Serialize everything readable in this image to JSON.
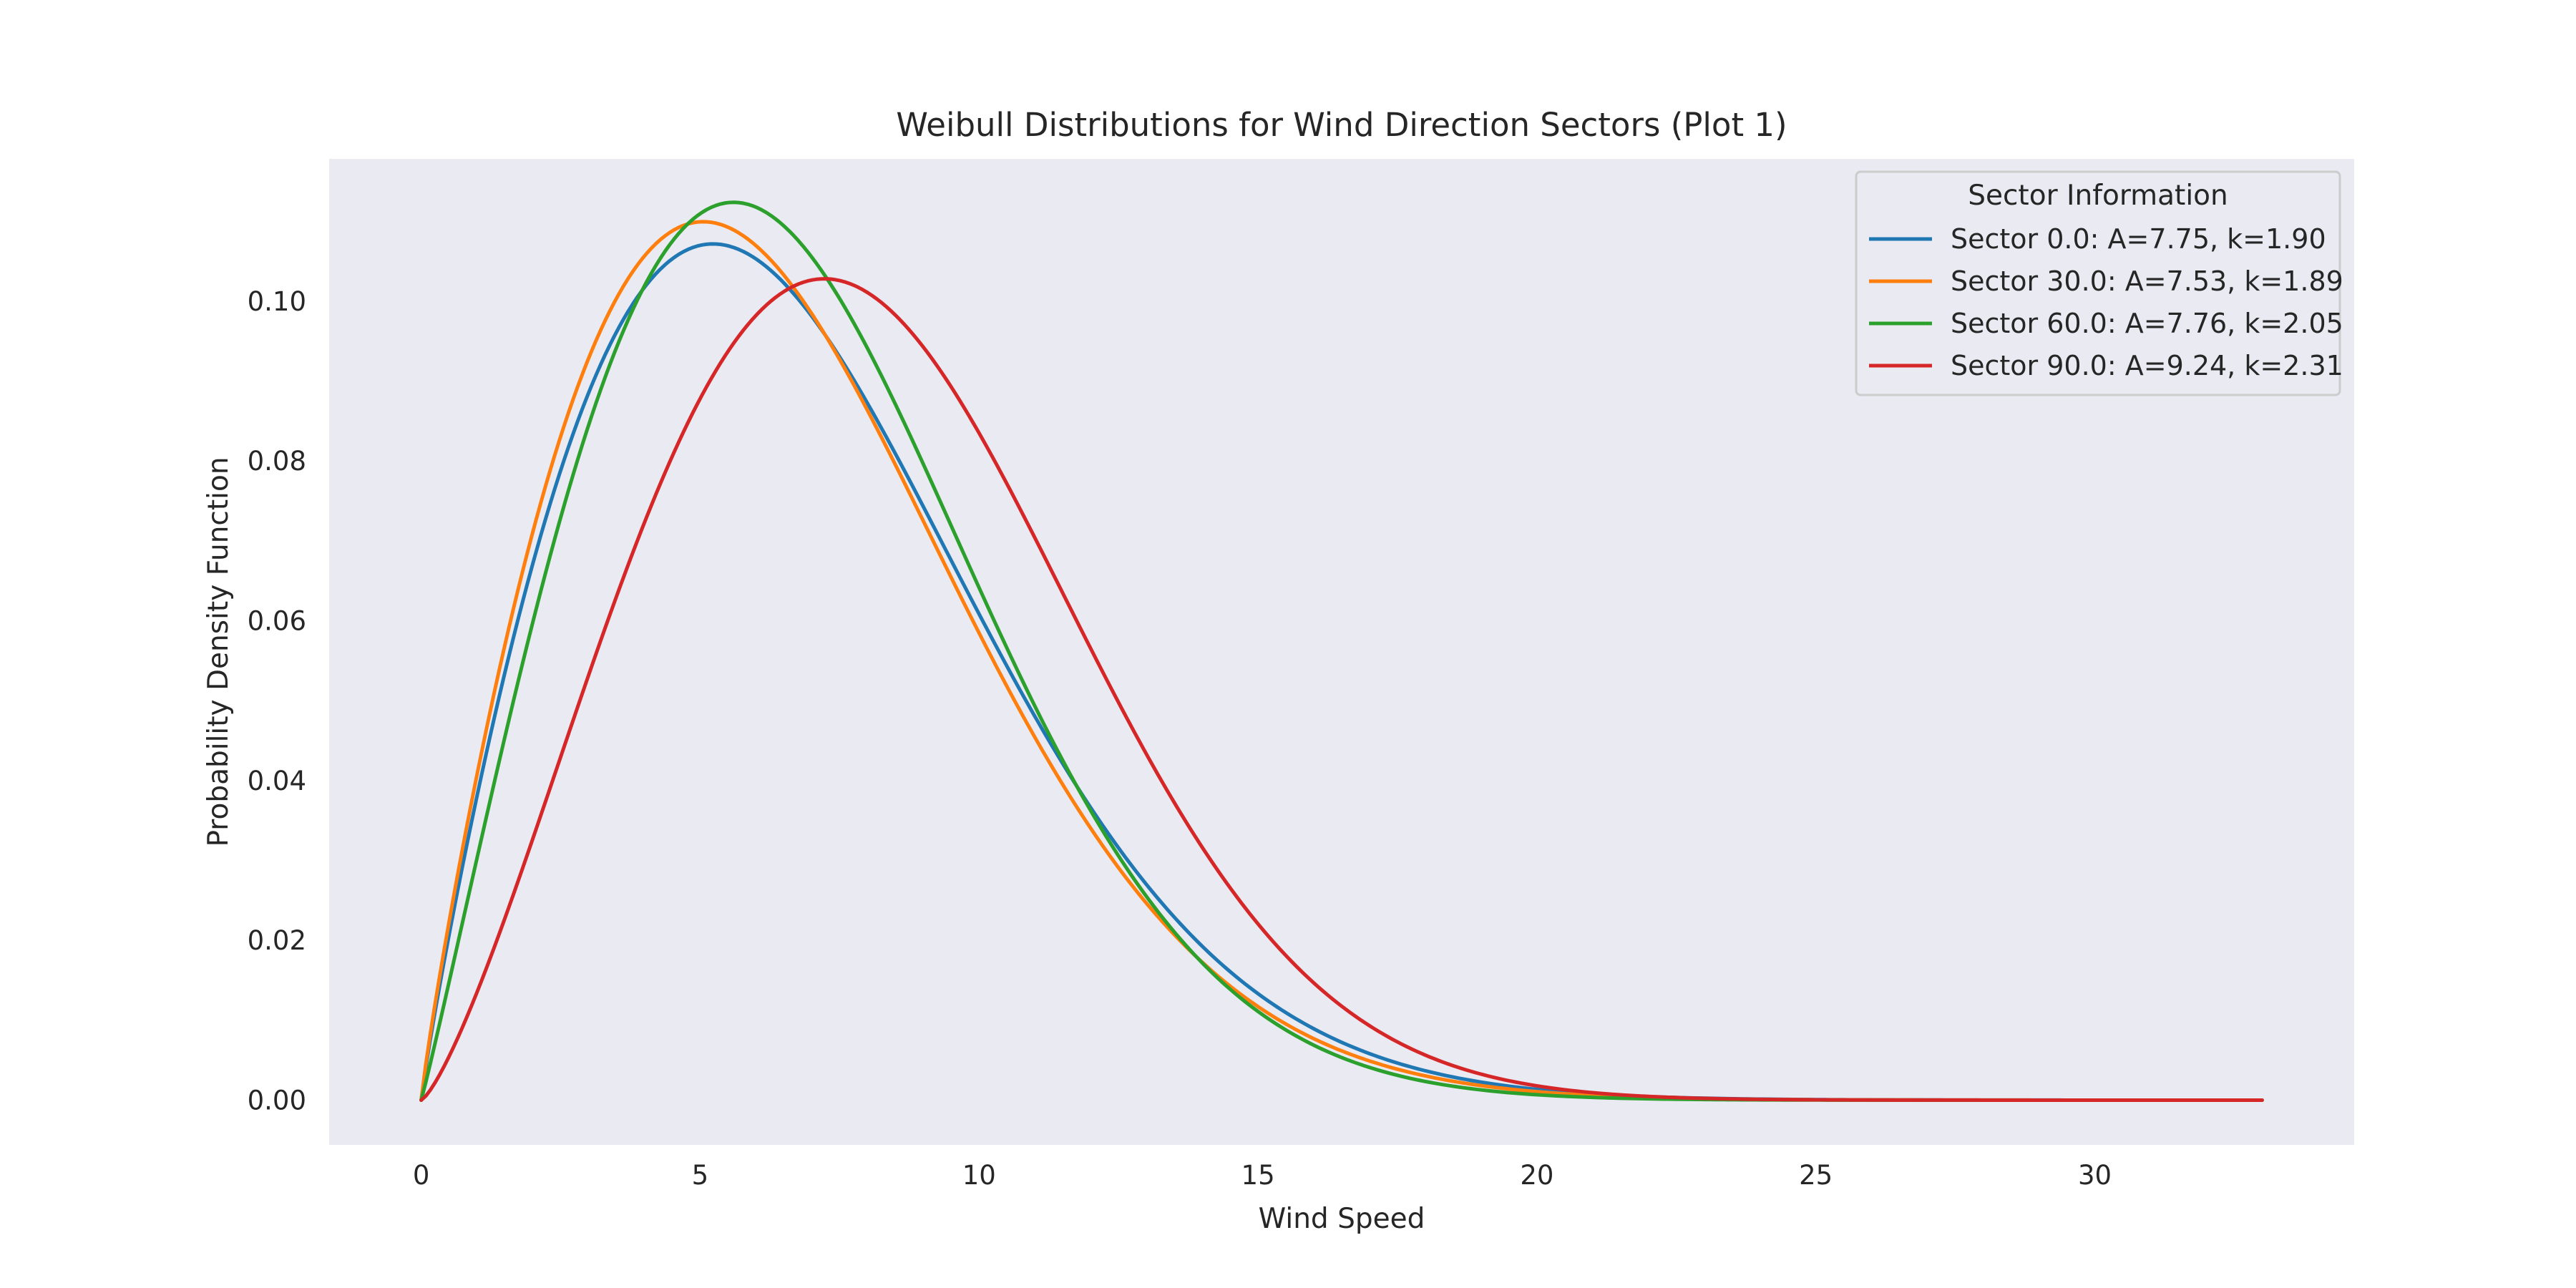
{
  "chart_data": {
    "type": "line",
    "title": "Weibull Distributions for Wind Direction Sectors (Plot 1)",
    "xlabel": "Wind Speed",
    "ylabel": "Probability Density Function",
    "xlim": [
      -1.65,
      34.65
    ],
    "ylim": [
      -0.0056,
      0.1178
    ],
    "xticks": [
      0,
      5,
      10,
      15,
      20,
      25,
      30
    ],
    "xtick_labels": [
      "0",
      "5",
      "10",
      "15",
      "20",
      "25",
      "30"
    ],
    "yticks": [
      0,
      0.02,
      0.04,
      0.06,
      0.08,
      0.1
    ],
    "ytick_labels": [
      "0.00",
      "0.02",
      "0.04",
      "0.06",
      "0.08",
      "0.10"
    ],
    "x_range": [
      0,
      33
    ],
    "grid": false,
    "background": "#EAEAF2",
    "legend": {
      "title": "Sector Information",
      "placement": "upper right"
    },
    "series": [
      {
        "name": "Sector 0.0: A=7.75, k=1.90",
        "A": 7.75,
        "k": 1.9,
        "color": "#1f77b4"
      },
      {
        "name": "Sector 30.0: A=7.53, k=1.89",
        "A": 7.53,
        "k": 1.89,
        "color": "#ff7f0e"
      },
      {
        "name": "Sector 60.0: A=7.76, k=2.05",
        "A": 7.76,
        "k": 2.05,
        "color": "#2ca02c"
      },
      {
        "name": "Sector 90.0: A=9.24, k=2.31",
        "A": 9.24,
        "k": 2.31,
        "color": "#d62728"
      }
    ]
  }
}
